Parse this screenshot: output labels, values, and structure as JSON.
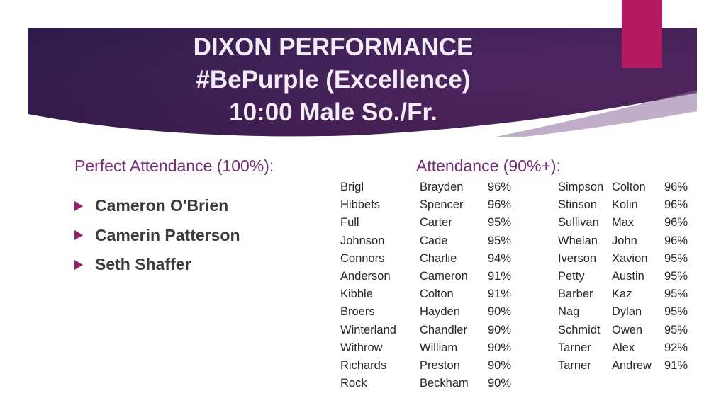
{
  "title": {
    "line1": "DIXON PERFORMANCE",
    "line2": "#BePurple (Excellence)",
    "line3": "10:00 Male So./Fr."
  },
  "colors": {
    "banner_dark": "#2e1b4c",
    "banner_mid": "#4f2360",
    "banner_light": "#7a2a68",
    "accent": "#b5195f",
    "heading": "#7a2a7c",
    "bullet": "#9b1e6a"
  },
  "perfect": {
    "heading": "Perfect Attendance (100%):",
    "names": [
      "Cameron O'Brien",
      "Camerin Patterson",
      "Seth Shaffer"
    ]
  },
  "ninety": {
    "heading": "Attendance (90%+):",
    "left": [
      {
        "last": "Brigl",
        "first": "Brayden",
        "pct": "96%"
      },
      {
        "last": "Hibbets",
        "first": "Spencer",
        "pct": "96%"
      },
      {
        "last": "Full",
        "first": "Carter",
        "pct": "95%"
      },
      {
        "last": "Johnson",
        "first": "Cade",
        "pct": "95%"
      },
      {
        "last": "Connors",
        "first": "Charlie",
        "pct": "94%"
      },
      {
        "last": "Anderson",
        "first": "Cameron",
        "pct": "91%"
      },
      {
        "last": "Kibble",
        "first": "Colton",
        "pct": "91%"
      },
      {
        "last": "Broers",
        "first": "Hayden",
        "pct": "90%"
      },
      {
        "last": "Winterland",
        "first": "Chandler",
        "pct": "90%"
      },
      {
        "last": "Withrow",
        "first": "William",
        "pct": "90%"
      },
      {
        "last": "Richards",
        "first": "Preston",
        "pct": "90%"
      },
      {
        "last": "Rock",
        "first": "Beckham",
        "pct": "90%"
      }
    ],
    "right": [
      {
        "last": "Simpson",
        "first": "Colton",
        "pct": "96%"
      },
      {
        "last": "Stinson",
        "first": "Kolin",
        "pct": "96%"
      },
      {
        "last": "Sullivan",
        "first": "Max",
        "pct": "96%"
      },
      {
        "last": "Whelan",
        "first": "John",
        "pct": "96%"
      },
      {
        "last": "Iverson",
        "first": "Xavion",
        "pct": "95%"
      },
      {
        "last": "Petty",
        "first": "Austin",
        "pct": "95%"
      },
      {
        "last": "Barber",
        "first": "Kaz",
        "pct": "95%"
      },
      {
        "last": "Nag",
        "first": "Dylan",
        "pct": "95%"
      },
      {
        "last": "Schmidt",
        "first": "Owen",
        "pct": "95%"
      },
      {
        "last": "Tarner",
        "first": "Alex",
        "pct": "92%"
      },
      {
        "last": "Tarner",
        "first": "Andrew",
        "pct": "91%"
      }
    ]
  }
}
